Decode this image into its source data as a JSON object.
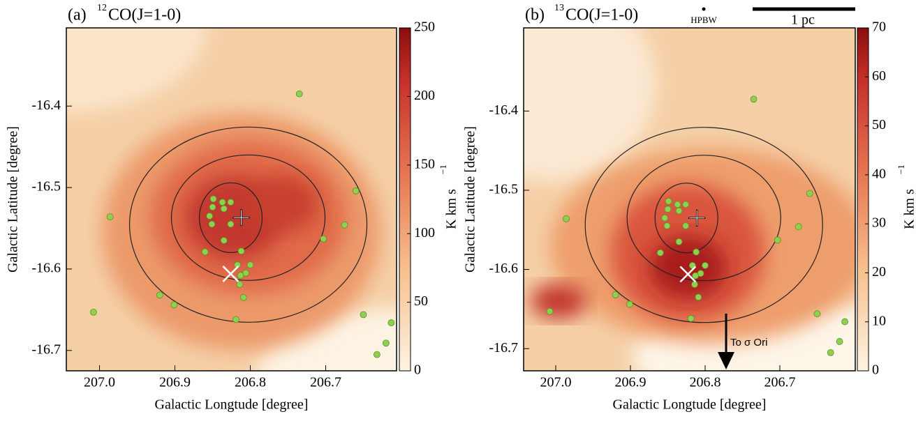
{
  "chart_data": [
    {
      "type": "scatter",
      "panel": "(a)",
      "isotope": "12",
      "line": "CO(J=1-0)",
      "xlabel": "Galactic Longtude [degree]",
      "ylabel": "Galactic Latitude [degree]",
      "xlim": [
        207.044,
        206.606
      ],
      "ylim": [
        -16.725,
        -16.304
      ],
      "xticks": [
        {
          "value": 207.0,
          "label": "207.0"
        },
        206.9,
        206.8,
        206.7
      ],
      "yticks": [
        -16.7,
        -16.6,
        -16.5,
        -16.4
      ],
      "colorbar_lim": [
        0,
        250
      ],
      "colorbar_ticks": [
        0,
        50,
        100,
        150,
        200,
        250
      ],
      "colorbar_label": "K km s",
      "colorbar_label_sup": "−1",
      "color": "#8fd14f",
      "x": [
        206.735,
        206.986,
        206.86,
        206.849,
        206.837,
        206.826,
        206.85,
        206.835,
        206.854,
        206.851,
        206.826,
        206.835,
        206.812,
        206.817,
        206.8,
        206.806,
        206.813,
        206.814,
        206.809,
        206.819,
        206.901,
        206.92,
        207.008,
        206.675,
        206.703,
        206.66,
        206.65,
        206.613,
        206.62,
        206.632
      ],
      "y": [
        -16.385,
        -16.536,
        -16.579,
        -16.514,
        -16.518,
        -16.518,
        -16.524,
        -16.526,
        -16.535,
        -16.545,
        -16.545,
        -16.565,
        -16.578,
        -16.595,
        -16.595,
        -16.605,
        -16.608,
        -16.619,
        -16.635,
        -16.662,
        -16.644,
        -16.632,
        -16.653,
        -16.546,
        -16.563,
        -16.504,
        -16.656,
        -16.666,
        -16.691,
        -16.705
      ],
      "plus": {
        "x": 206.812,
        "y": -16.537
      },
      "cross": {
        "x": 206.826,
        "y": -16.606
      }
    },
    {
      "type": "scatter",
      "panel": "(b)",
      "isotope": "13",
      "line": "CO(J=1-0)",
      "xlabel": "Galactic Longtude [degree]",
      "ylabel": "Galactic Latitude [degree]",
      "xlim": [
        207.043,
        206.599
      ],
      "ylim": [
        -16.728,
        -16.295
      ],
      "xticks": [
        {
          "value": 207.0,
          "label": "207.0"
        },
        206.9,
        206.8,
        206.7
      ],
      "yticks": [
        -16.7,
        -16.6,
        -16.5,
        -16.4
      ],
      "colorbar_lim": [
        0,
        70
      ],
      "colorbar_ticks": [
        0,
        10,
        20,
        30,
        40,
        50,
        60,
        70
      ],
      "colorbar_label": "K km s",
      "colorbar_label_sup": "−1",
      "color": "#8fd14f",
      "x": [
        206.735,
        206.986,
        206.86,
        206.849,
        206.837,
        206.826,
        206.85,
        206.835,
        206.854,
        206.851,
        206.826,
        206.835,
        206.812,
        206.817,
        206.8,
        206.806,
        206.813,
        206.814,
        206.809,
        206.819,
        206.901,
        206.92,
        207.008,
        206.675,
        206.703,
        206.66,
        206.65,
        206.613,
        206.62,
        206.632
      ],
      "y": [
        -16.385,
        -16.536,
        -16.579,
        -16.514,
        -16.518,
        -16.518,
        -16.524,
        -16.526,
        -16.535,
        -16.545,
        -16.545,
        -16.565,
        -16.578,
        -16.595,
        -16.595,
        -16.605,
        -16.608,
        -16.619,
        -16.635,
        -16.662,
        -16.644,
        -16.632,
        -16.653,
        -16.546,
        -16.563,
        -16.504,
        -16.656,
        -16.666,
        -16.691,
        -16.705
      ],
      "plus": {
        "x": 206.811,
        "y": -16.535
      },
      "cross": {
        "x": 206.823,
        "y": -16.606
      },
      "beam_label": "HPBW",
      "scale_label": "1 pc",
      "arrow_label": "To σ Ori"
    }
  ]
}
